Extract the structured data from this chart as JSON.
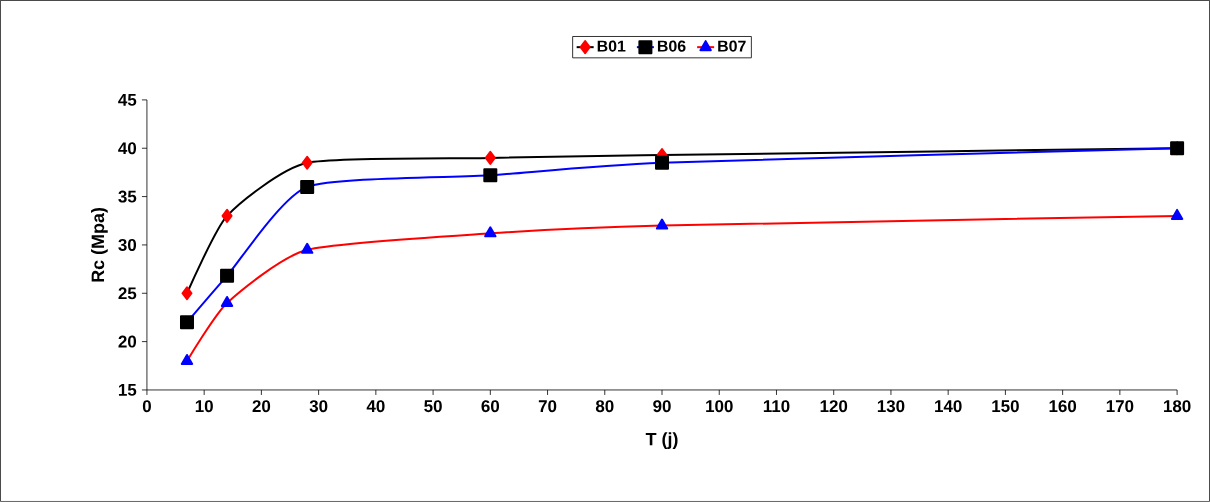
{
  "chart_data": {
    "type": "line",
    "xlabel": "T (j)",
    "ylabel": "Rc (Mpa)",
    "x": [
      7,
      14,
      28,
      60,
      90,
      180
    ],
    "series": [
      {
        "name": "B01",
        "color": "#000000",
        "marker": "diamond",
        "colors": [
          "#ff0000",
          "#ff0000",
          "#ff0000",
          "#ff0000",
          "#ff0000",
          "#ff0000"
        ],
        "values": [
          25,
          33,
          38.5,
          39,
          39.3,
          40
        ]
      },
      {
        "name": "B06",
        "color": "#0000ff",
        "marker": "square",
        "colors": [
          "#000000",
          "#000000",
          "#000000",
          "#000000",
          "#000000",
          "#000000"
        ],
        "values": [
          22,
          26.8,
          36,
          37.2,
          38.5,
          40
        ]
      },
      {
        "name": "B07",
        "color": "#ff0000",
        "marker": "triangle",
        "colors": [
          "#0000ff",
          "#0000ff",
          "#0000ff",
          "#0000ff",
          "#0000ff",
          "#0000ff"
        ],
        "values": [
          18,
          24,
          29.5,
          31.2,
          32,
          33
        ]
      }
    ],
    "xlim": [
      0,
      180
    ],
    "xticks": [
      0,
      10,
      20,
      30,
      40,
      50,
      60,
      70,
      80,
      90,
      100,
      110,
      120,
      130,
      140,
      150,
      160,
      170,
      180
    ],
    "ylim": [
      15,
      45
    ],
    "yticks": [
      15,
      20,
      25,
      30,
      35,
      40,
      45
    ],
    "grid": false,
    "legend": "top",
    "line_style": "solid"
  }
}
